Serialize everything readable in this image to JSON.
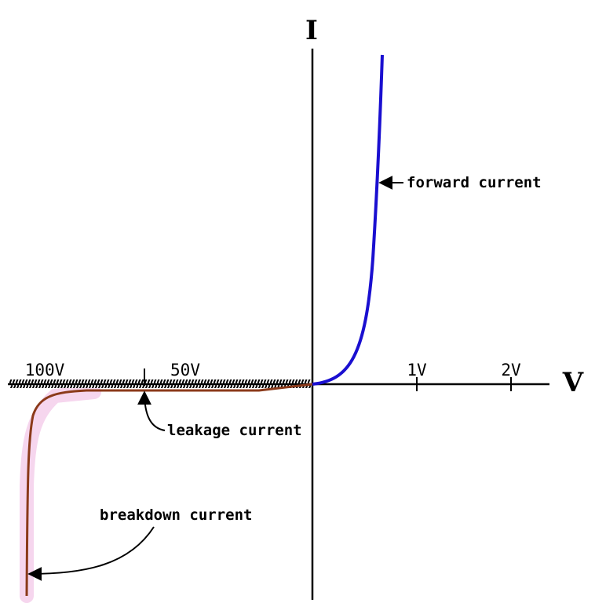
{
  "axes": {
    "x_title": "V",
    "y_title": "I"
  },
  "ticks": {
    "neg_100": "100V",
    "neg_50": "50V",
    "pos_1": "1V",
    "pos_2": "2V"
  },
  "annotations": {
    "forward": "forward current",
    "leakage": "leakage current",
    "breakdown": "breakdown current"
  },
  "colors": {
    "axis": "#000000",
    "forward_curve": "#1a0fd0",
    "reverse_curve": "#8b3a1a",
    "breakdown_halo": "#f6d6ee",
    "arrow": "#000000"
  },
  "icons": {
    "arrowheads": "arrow-head-icon",
    "hatching": "hatch-band"
  }
}
